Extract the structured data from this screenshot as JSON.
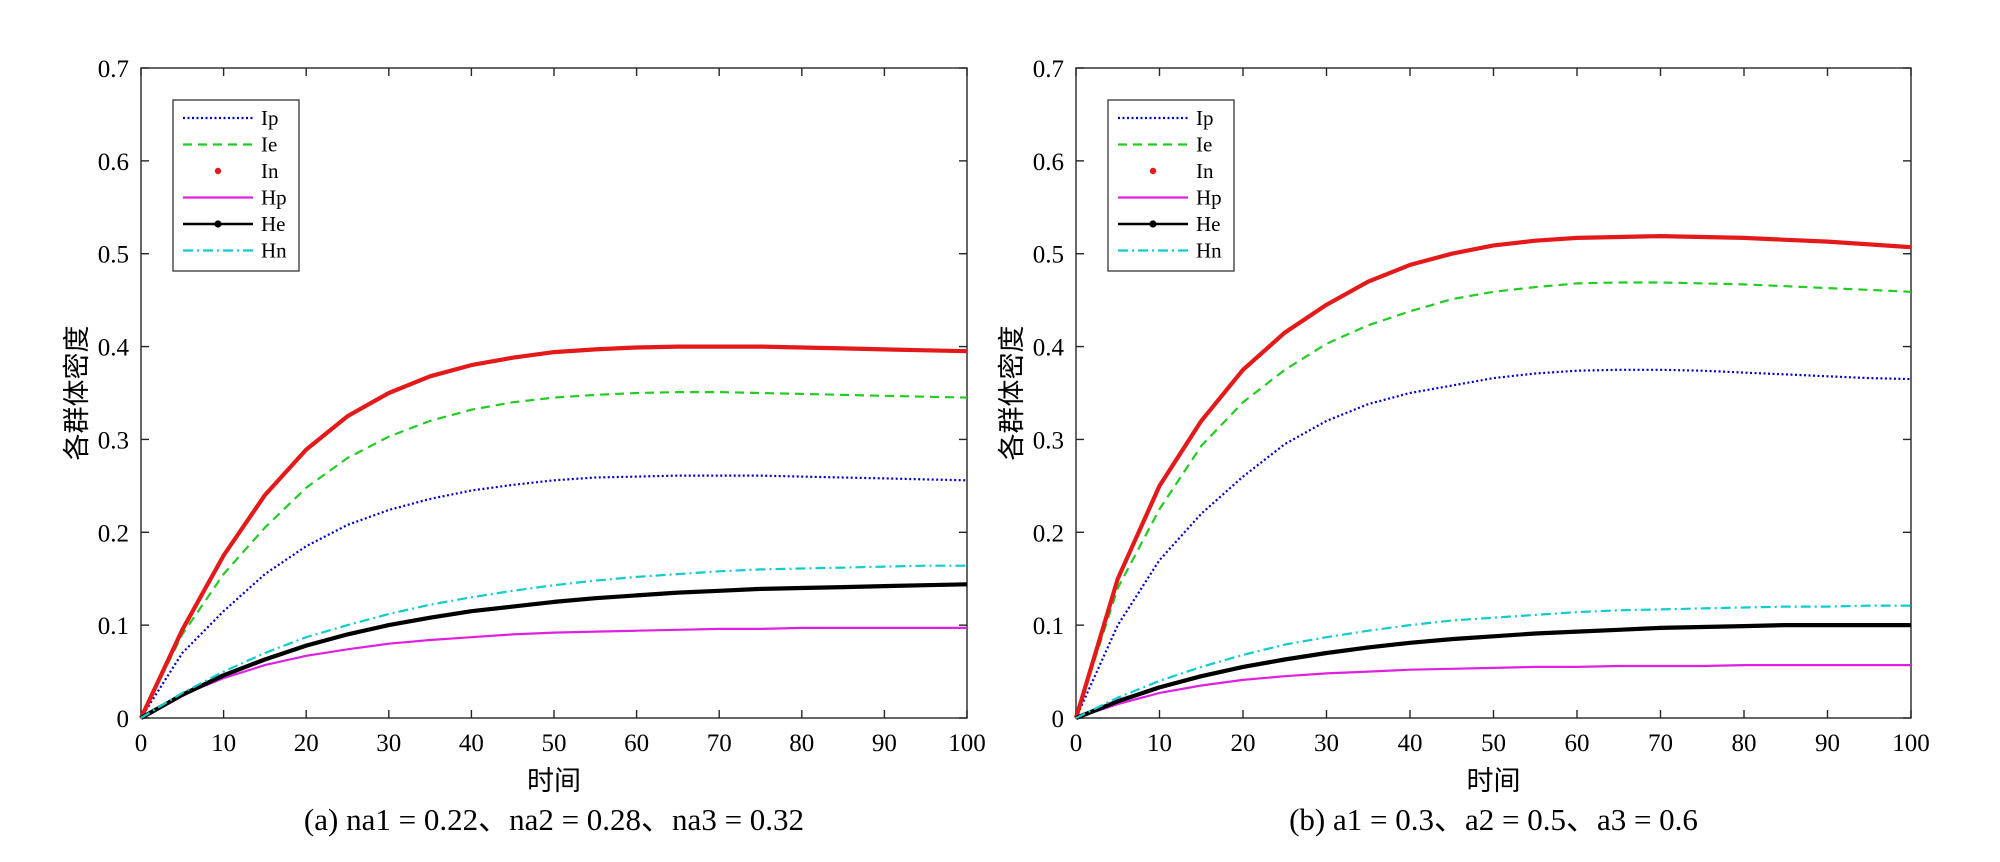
{
  "chart_data": [
    {
      "type": "line",
      "caption": "(a) na1 = 0.22、na2 = 0.28、na3 = 0.32",
      "xlabel": "时间",
      "ylabel": "各群体密度",
      "xlim": [
        0,
        100
      ],
      "ylim": [
        0,
        0.7
      ],
      "xticks": [
        "0",
        "10",
        "20",
        "30",
        "40",
        "50",
        "60",
        "70",
        "80",
        "90",
        "100"
      ],
      "yticks": [
        "0",
        "0.1",
        "0.2",
        "0.3",
        "0.4",
        "0.5",
        "0.6",
        "0.7"
      ],
      "legend_position": "top-left",
      "x": [
        0,
        5,
        10,
        15,
        20,
        25,
        30,
        35,
        40,
        45,
        50,
        55,
        60,
        65,
        70,
        75,
        80,
        85,
        90,
        95,
        100
      ],
      "series": [
        {
          "name": "Ip",
          "color": "#0000cc",
          "style": "dotted",
          "values": [
            0,
            0.07,
            0.115,
            0.155,
            0.185,
            0.208,
            0.224,
            0.236,
            0.245,
            0.251,
            0.256,
            0.259,
            0.26,
            0.261,
            0.261,
            0.261,
            0.26,
            0.259,
            0.258,
            0.257,
            0.256
          ]
        },
        {
          "name": "Ie",
          "color": "#22cc22",
          "style": "dashed",
          "values": [
            0,
            0.09,
            0.155,
            0.205,
            0.248,
            0.28,
            0.303,
            0.32,
            0.332,
            0.34,
            0.345,
            0.348,
            0.35,
            0.351,
            0.351,
            0.35,
            0.349,
            0.348,
            0.347,
            0.346,
            0.345
          ]
        },
        {
          "name": "In",
          "color": "#e41a1a",
          "style": "solid-thick",
          "values": [
            0,
            0.095,
            0.175,
            0.24,
            0.289,
            0.325,
            0.35,
            0.368,
            0.38,
            0.388,
            0.394,
            0.397,
            0.399,
            0.4,
            0.4,
            0.4,
            0.399,
            0.398,
            0.397,
            0.396,
            0.395
          ]
        },
        {
          "name": "Hp",
          "color": "#e020e0",
          "style": "solid",
          "values": [
            0,
            0.025,
            0.043,
            0.057,
            0.067,
            0.074,
            0.08,
            0.084,
            0.087,
            0.09,
            0.092,
            0.093,
            0.094,
            0.095,
            0.096,
            0.096,
            0.097,
            0.097,
            0.097,
            0.097,
            0.097
          ]
        },
        {
          "name": "He",
          "color": "#000000",
          "style": "solid-thick",
          "values": [
            0,
            0.025,
            0.046,
            0.063,
            0.078,
            0.09,
            0.1,
            0.108,
            0.115,
            0.12,
            0.125,
            0.129,
            0.132,
            0.135,
            0.137,
            0.139,
            0.14,
            0.141,
            0.142,
            0.143,
            0.144
          ]
        },
        {
          "name": "Hn",
          "color": "#10cccc",
          "style": "dashdot",
          "values": [
            0,
            0.027,
            0.05,
            0.07,
            0.087,
            0.1,
            0.112,
            0.122,
            0.13,
            0.137,
            0.143,
            0.148,
            0.152,
            0.155,
            0.158,
            0.16,
            0.161,
            0.162,
            0.163,
            0.164,
            0.164
          ]
        }
      ]
    },
    {
      "type": "line",
      "caption": "(b) a1 = 0.3、a2 = 0.5、a3 = 0.6",
      "xlabel": "时间",
      "ylabel": "各群体密度",
      "xlim": [
        0,
        100
      ],
      "ylim": [
        0,
        0.7
      ],
      "xticks": [
        "0",
        "10",
        "20",
        "30",
        "40",
        "50",
        "60",
        "70",
        "80",
        "90",
        "100"
      ],
      "yticks": [
        "0",
        "0.1",
        "0.2",
        "0.3",
        "0.4",
        "0.5",
        "0.6",
        "0.7"
      ],
      "legend_position": "top-left",
      "x": [
        0,
        5,
        10,
        15,
        20,
        25,
        30,
        35,
        40,
        45,
        50,
        55,
        60,
        65,
        70,
        75,
        80,
        85,
        90,
        95,
        100
      ],
      "series": [
        {
          "name": "Ip",
          "color": "#0000cc",
          "style": "dotted",
          "values": [
            0,
            0.1,
            0.17,
            0.22,
            0.26,
            0.295,
            0.32,
            0.338,
            0.35,
            0.358,
            0.366,
            0.371,
            0.374,
            0.375,
            0.375,
            0.374,
            0.372,
            0.37,
            0.368,
            0.366,
            0.365
          ]
        },
        {
          "name": "Ie",
          "color": "#22cc22",
          "style": "dashed",
          "values": [
            0,
            0.14,
            0.225,
            0.293,
            0.34,
            0.375,
            0.403,
            0.423,
            0.438,
            0.451,
            0.459,
            0.464,
            0.468,
            0.469,
            0.469,
            0.468,
            0.467,
            0.465,
            0.463,
            0.461,
            0.459
          ]
        },
        {
          "name": "In",
          "color": "#e41a1a",
          "style": "solid-thick",
          "values": [
            0,
            0.15,
            0.25,
            0.32,
            0.375,
            0.415,
            0.445,
            0.47,
            0.488,
            0.5,
            0.509,
            0.514,
            0.517,
            0.518,
            0.519,
            0.518,
            0.517,
            0.515,
            0.513,
            0.51,
            0.507
          ]
        },
        {
          "name": "Hp",
          "color": "#e020e0",
          "style": "solid",
          "values": [
            0,
            0.015,
            0.027,
            0.035,
            0.041,
            0.045,
            0.048,
            0.05,
            0.052,
            0.053,
            0.054,
            0.055,
            0.055,
            0.056,
            0.056,
            0.056,
            0.057,
            0.057,
            0.057,
            0.057,
            0.057
          ]
        },
        {
          "name": "He",
          "color": "#000000",
          "style": "solid-thick",
          "values": [
            0,
            0.018,
            0.033,
            0.045,
            0.055,
            0.063,
            0.07,
            0.076,
            0.081,
            0.085,
            0.088,
            0.091,
            0.093,
            0.095,
            0.097,
            0.098,
            0.099,
            0.1,
            0.1,
            0.1,
            0.1
          ]
        },
        {
          "name": "Hn",
          "color": "#10cccc",
          "style": "dashdot",
          "values": [
            0,
            0.022,
            0.04,
            0.055,
            0.068,
            0.079,
            0.087,
            0.094,
            0.1,
            0.105,
            0.108,
            0.111,
            0.114,
            0.116,
            0.117,
            0.118,
            0.119,
            0.12,
            0.12,
            0.121,
            0.121
          ]
        }
      ]
    }
  ]
}
